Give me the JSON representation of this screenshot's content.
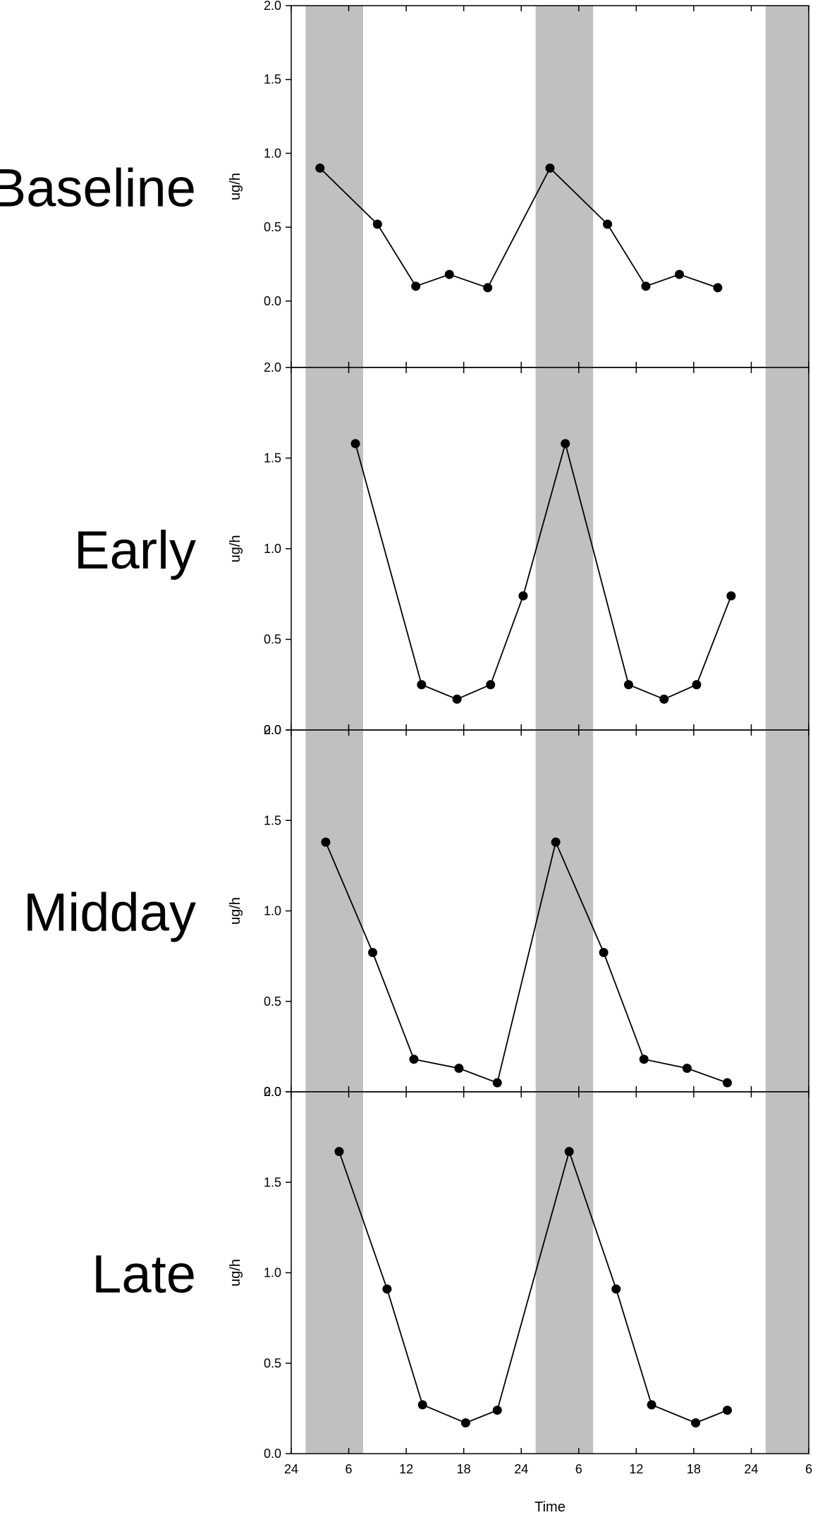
{
  "chart_data": {
    "type": "line",
    "xlabel": "Time",
    "x_tick_labels": [
      "24",
      "6",
      "12",
      "18",
      "24",
      "6",
      "12",
      "18",
      "24",
      "6"
    ],
    "xlim": [
      0,
      54
    ],
    "dark_periods": [
      [
        1.5,
        7.5
      ],
      [
        25.5,
        31.5
      ],
      [
        49.5,
        54
      ]
    ],
    "colors": {
      "dark_band": "#c0c0c0",
      "line": "#000000",
      "marker": "#000000"
    },
    "panels": [
      {
        "label": "Baseline",
        "ylabel": "ug/h",
        "ylim": [
          -0.45,
          2.0
        ],
        "y_ticks": [
          0.0,
          0.5,
          1.0,
          1.5,
          2.0
        ],
        "y_tick_labels": [
          "0.0",
          "0.5",
          "1.0",
          "1.5",
          "2.0"
        ],
        "x": [
          3,
          9,
          13,
          16.5,
          20.5,
          27,
          33,
          37,
          40.5,
          44.5
        ],
        "y": [
          0.9,
          0.52,
          0.1,
          0.18,
          0.09,
          0.9,
          0.52,
          0.1,
          0.18,
          0.09
        ]
      },
      {
        "label": "Early",
        "ylabel": "ug/h",
        "ylim": [
          0.0,
          2.0
        ],
        "y_ticks": [
          0.0,
          0.5,
          1.0,
          1.5,
          2.0
        ],
        "y_tick_labels": [
          "0.0",
          "0.5",
          "1.0",
          "1.5",
          "2.0"
        ],
        "x": [
          6.7,
          13.6,
          17.3,
          20.8,
          24.2,
          28.6,
          35.2,
          38.9,
          42.3,
          45.9
        ],
        "y": [
          1.58,
          0.25,
          0.17,
          0.25,
          0.74,
          1.58,
          0.25,
          0.17,
          0.25,
          0.74
        ]
      },
      {
        "label": "Midday",
        "ylabel": "ug/h",
        "ylim": [
          0.0,
          2.0
        ],
        "y_ticks": [
          0.0,
          0.5,
          1.0,
          1.5,
          2.0
        ],
        "y_tick_labels": [
          "0.0",
          "0.5",
          "1.0",
          "1.5",
          "2.0"
        ],
        "x": [
          3.6,
          8.5,
          12.8,
          17.5,
          21.5,
          27.6,
          32.6,
          36.8,
          41.3,
          45.5
        ],
        "y": [
          1.38,
          0.77,
          0.18,
          0.13,
          0.05,
          1.38,
          0.77,
          0.18,
          0.13,
          0.05
        ]
      },
      {
        "label": "Late",
        "ylabel": "ug/h",
        "ylim": [
          0.0,
          2.0
        ],
        "y_ticks": [
          0.0,
          0.5,
          1.0,
          1.5,
          2.0
        ],
        "y_tick_labels": [
          "0.0",
          "0.5",
          "1.0",
          "1.5",
          "2.0"
        ],
        "x": [
          5.0,
          10.0,
          13.7,
          18.2,
          21.5,
          29.0,
          33.9,
          37.6,
          42.2,
          45.5
        ],
        "y": [
          1.67,
          0.91,
          0.27,
          0.17,
          0.24,
          1.67,
          0.91,
          0.27,
          0.17,
          0.24
        ]
      }
    ]
  }
}
